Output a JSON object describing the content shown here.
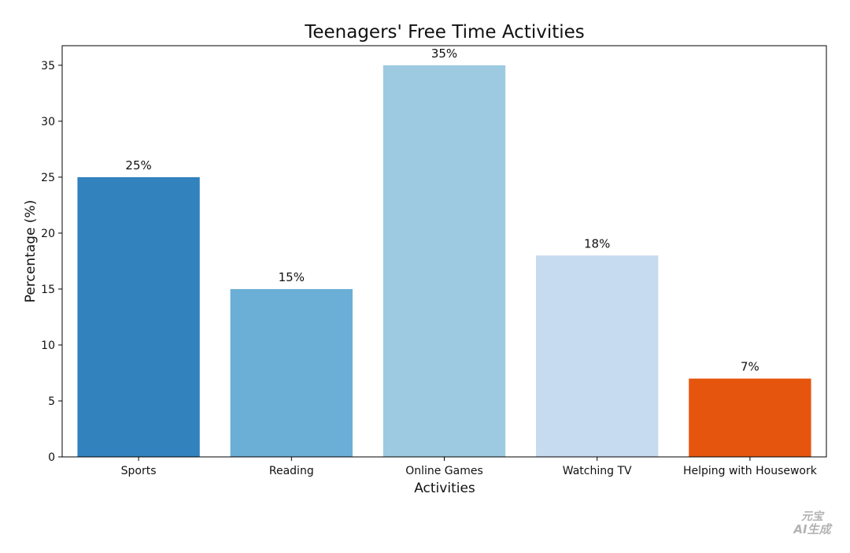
{
  "chart_data": {
    "type": "bar",
    "title": "Teenagers' Free Time Activities",
    "xlabel": "Activities",
    "ylabel": "Percentage (%)",
    "categories": [
      "Sports",
      "Reading",
      "Online Games",
      "Watching TV",
      "Helping with Housework"
    ],
    "values": [
      25,
      15,
      35,
      18,
      7
    ],
    "data_labels": [
      "25%",
      "15%",
      "35%",
      "18%",
      "7%"
    ],
    "colors": [
      "#3182bd",
      "#6baed6",
      "#9ecae1",
      "#c6dbef",
      "#e6550d"
    ],
    "ylim": [
      0,
      36.75
    ],
    "yticks": [
      0,
      5,
      10,
      15,
      20,
      25,
      30,
      35
    ],
    "grid": false,
    "legend": "none"
  },
  "watermark": {
    "line1": "元宝",
    "line2": "AI生成"
  }
}
